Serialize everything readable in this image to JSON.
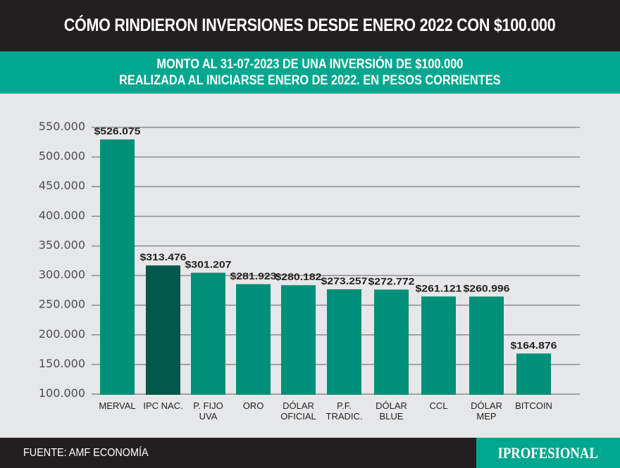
{
  "header": {
    "title": "CÓMO RINDIERON INVERSIONES DESDE ENERO 2022 CON $100.000"
  },
  "subheader": {
    "line1": "MONTO AL 31-07-2023 DE UNA INVERSIÓN DE $100.000",
    "line2": "REALIZADA AL INICIARSE ENERO DE 2022. EN PESOS CORRIENTES"
  },
  "footer": {
    "source": "FUENTE: AMF ECONOMÍA",
    "logo": "IPROFESIONAL"
  },
  "colors": {
    "bar": "#008f78",
    "highlight": "#00574a",
    "header_bg": "#231f20",
    "accent": "#00a78f",
    "plot_bg": "#e6e7e8"
  },
  "chart_data": {
    "type": "bar",
    "categories": [
      "MERVAL",
      "IPC NAC.",
      "P. FIJO\nUVA",
      "ORO",
      "DÓLAR\nOFICIAL",
      "P.F.\nTRADIC.",
      "DÓLAR\nBLUE",
      "CCL",
      "DÓLAR\nMEP",
      "BITCOIN"
    ],
    "values": [
      526075,
      313476,
      301207,
      281923,
      280182,
      273257,
      272772,
      261121,
      260996,
      164876
    ],
    "data_labels": [
      "$526.075",
      "$313.476",
      "$301.207",
      "$281.923",
      "$280.182",
      "$273.257",
      "$272.772",
      "$261.121",
      "$260.996",
      "$164.876"
    ],
    "highlighted_category": "IPC NAC.",
    "yticks": [
      "550.000",
      "500.000",
      "450.000",
      "400.000",
      "350.000",
      "300.000",
      "250.000",
      "200.000",
      "150.000",
      "100.000"
    ],
    "ylim": [
      100000,
      550000
    ],
    "grid": true,
    "legend": "none"
  }
}
